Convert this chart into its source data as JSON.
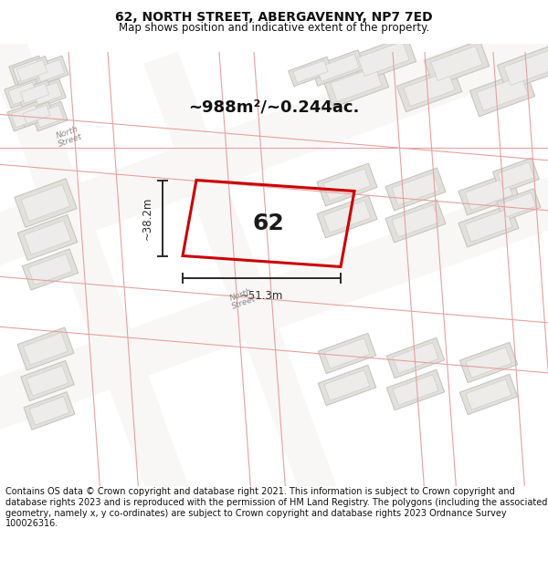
{
  "title": "62, NORTH STREET, ABERGAVENNY, NP7 7ED",
  "subtitle": "Map shows position and indicative extent of the property.",
  "footer": "Contains OS data © Crown copyright and database right 2021. This information is subject to Crown copyright and database rights 2023 and is reproduced with the permission of HM Land Registry. The polygons (including the associated geometry, namely x, y co-ordinates) are subject to Crown copyright and database rights 2023 Ordnance Survey 100026316.",
  "area_label": "~988m²/~0.244ac.",
  "plot_number": "62",
  "width_label": "~51.3m",
  "height_label": "~38.2m",
  "map_bg": "#f2f0ed",
  "road_white": "#f8f7f5",
  "bld_fill": "#e2e0db",
  "bld_edge": "#c8c6c0",
  "bld_inner_fill": "#edecea",
  "bld_inner_edge": "#d0cecc",
  "road_line_color": "#e8a0a0",
  "dim_color": "#2a2a2a",
  "plot_fill": "none",
  "plot_edge": "#cc0000",
  "title_fontsize": 10,
  "subtitle_fontsize": 8.5,
  "footer_fontsize": 7,
  "area_fontsize": 13,
  "plot_num_fontsize": 18,
  "dim_fontsize": 8.5,
  "street_fontsize": 6.5
}
